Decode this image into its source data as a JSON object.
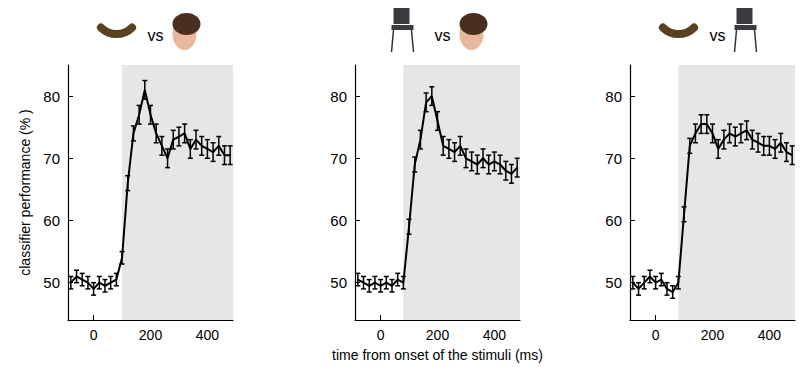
{
  "chart_data": [
    {
      "type": "line",
      "title": "vs",
      "y_label": "classifier performance (% )",
      "x": [
        -80,
        -60,
        -40,
        -20,
        0,
        20,
        40,
        60,
        80,
        100,
        120,
        140,
        160,
        180,
        200,
        220,
        240,
        260,
        280,
        300,
        320,
        340,
        360,
        380,
        400,
        420,
        440,
        460,
        480
      ],
      "values": [
        50,
        51,
        50.5,
        50,
        49,
        50,
        49.5,
        50,
        50.5,
        54,
        66,
        74,
        77,
        81,
        77,
        74,
        72,
        70,
        73,
        73.5,
        74,
        71.5,
        73,
        72,
        71.5,
        71,
        72,
        70.5,
        70.5
      ],
      "errors": [
        1,
        1,
        1,
        1,
        1,
        1,
        1,
        1,
        1,
        1,
        1.2,
        1.2,
        1.5,
        1.5,
        1.5,
        1.5,
        1.5,
        1.5,
        1.5,
        1.5,
        1.5,
        1.5,
        1.5,
        1.5,
        1.5,
        1.5,
        1.5,
        1.5,
        1.5
      ],
      "shaded_range": [
        100,
        490
      ],
      "color": "#000000",
      "marker": "none",
      "xlim": [
        -90,
        490
      ],
      "xticks": [
        0,
        200,
        400
      ],
      "ylim": [
        44,
        85
      ],
      "yticks": [
        50,
        60,
        70,
        80
      ],
      "grid": false
    },
    {
      "type": "line",
      "title": "vs",
      "x_label": "time from onset of the stimuli (ms)",
      "x": [
        -80,
        -60,
        -40,
        -20,
        0,
        20,
        40,
        60,
        80,
        100,
        120,
        140,
        160,
        180,
        200,
        220,
        240,
        260,
        280,
        300,
        320,
        340,
        360,
        380,
        400,
        420,
        440,
        460,
        480
      ],
      "values": [
        50.5,
        50,
        49.5,
        50,
        49.5,
        50,
        49.5,
        50.5,
        50,
        59,
        69,
        73,
        79,
        80,
        76,
        72,
        71.5,
        71,
        72,
        70,
        69.5,
        69,
        70,
        69,
        69.5,
        69,
        68,
        67.5,
        68.5
      ],
      "errors": [
        1,
        1,
        1,
        1,
        1,
        1,
        1,
        1,
        1,
        1.2,
        1.2,
        1.5,
        1.5,
        1.5,
        1.5,
        1.5,
        1.5,
        1.5,
        1.5,
        1.5,
        1.5,
        1.5,
        1.5,
        1.5,
        1.5,
        1.5,
        1.5,
        1.5,
        1.5
      ],
      "shaded_range": [
        80,
        490
      ],
      "color": "#000000",
      "marker": "none",
      "xlim": [
        -90,
        490
      ],
      "xticks": [
        0,
        200,
        400
      ],
      "ylim": [
        44,
        85
      ],
      "yticks": [
        50,
        60,
        70,
        80
      ],
      "grid": false
    },
    {
      "type": "line",
      "title": "vs",
      "x": [
        -80,
        -60,
        -40,
        -20,
        0,
        20,
        40,
        60,
        80,
        100,
        120,
        140,
        160,
        180,
        200,
        220,
        240,
        260,
        280,
        300,
        320,
        340,
        360,
        380,
        400,
        420,
        440,
        460,
        480
      ],
      "values": [
        50,
        49,
        50,
        51,
        50,
        50.5,
        49,
        48.5,
        50,
        61,
        72,
        74,
        75.5,
        75.5,
        74,
        71.5,
        73,
        74,
        73.5,
        74,
        74.5,
        73,
        72.5,
        72,
        72,
        71.5,
        72.5,
        71,
        70.5
      ],
      "errors": [
        1,
        1,
        1,
        1,
        1,
        1,
        1,
        1,
        1,
        1.2,
        1.2,
        1.5,
        1.5,
        1.5,
        1.5,
        1.5,
        1.5,
        1.5,
        1.5,
        1.5,
        1.5,
        1.5,
        1.5,
        1.5,
        1.5,
        1.5,
        1.5,
        1.5,
        1.5
      ],
      "shaded_range": [
        80,
        490
      ],
      "color": "#000000",
      "marker": "none",
      "xlim": [
        -90,
        490
      ],
      "xticks": [
        0,
        200,
        400
      ],
      "ylim": [
        44,
        85
      ],
      "yticks": [
        50,
        60,
        70,
        80
      ],
      "grid": false
    }
  ]
}
